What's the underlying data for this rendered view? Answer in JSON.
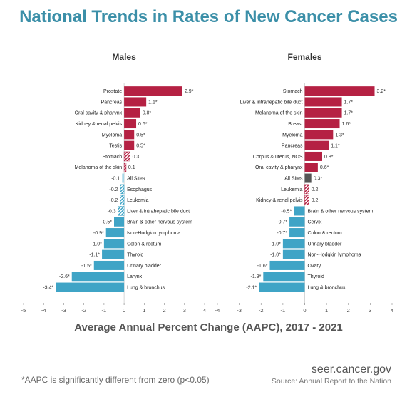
{
  "title": "National Trends in Rates of New Cancer Cases",
  "xlabel": "Average Annual Percent Change (AAPC), 2017 - 2021",
  "footnote": "*AAPC is significantly different from zero (p<0.05)",
  "site": "seer.cancer.gov",
  "source": "Source: Annual Report to the Nation",
  "colors": {
    "positive": "#b52143",
    "negative": "#3fa4c6",
    "all_sites_negative": "#a6d7e8",
    "all_sites_positive": "#555555",
    "hatch_positive": "#b52143",
    "hatch_negative": "#3fa4c6"
  },
  "chart_data": [
    {
      "type": "bar",
      "orientation": "horizontal",
      "title": "Males",
      "xlim": [
        -5,
        4
      ],
      "xticks": [
        "-5",
        "-4",
        "-3",
        "-2",
        "-1",
        "0",
        "1",
        "2",
        "3",
        "4"
      ],
      "bars": [
        {
          "category": "Prostate",
          "value": 2.9,
          "label": "2.9*",
          "significant": true
        },
        {
          "category": "Pancreas",
          "value": 1.1,
          "label": "1.1*",
          "significant": true
        },
        {
          "category": "Oral cavity & pharynx",
          "value": 0.8,
          "label": "0.8*",
          "significant": true
        },
        {
          "category": "Kidney & renal pelvis",
          "value": 0.6,
          "label": "0.6*",
          "significant": true
        },
        {
          "category": "Myeloma",
          "value": 0.5,
          "label": "0.5*",
          "significant": true
        },
        {
          "category": "Testis",
          "value": 0.5,
          "label": "0.5*",
          "significant": true
        },
        {
          "category": "Stomach",
          "value": 0.3,
          "label": "0.3",
          "significant": false
        },
        {
          "category": "Melanoma of the skin",
          "value": 0.1,
          "label": "0.1",
          "significant": false
        },
        {
          "category": "All Sites",
          "value": -0.1,
          "label": "-0.1",
          "significant": false,
          "all_sites": true
        },
        {
          "category": "Esophagus",
          "value": -0.2,
          "label": "-0.2",
          "significant": false
        },
        {
          "category": "Leukemia",
          "value": -0.2,
          "label": "-0.2",
          "significant": false
        },
        {
          "category": "Liver & intrahepatic bile duct",
          "value": -0.3,
          "label": "-0.3",
          "significant": false
        },
        {
          "category": "Brain & other nervous system",
          "value": -0.5,
          "label": "-0.5*",
          "significant": true
        },
        {
          "category": "Non-Hodgkin lymphoma",
          "value": -0.9,
          "label": "-0.9*",
          "significant": true
        },
        {
          "category": "Colon & rectum",
          "value": -1.0,
          "label": "-1.0*",
          "significant": true
        },
        {
          "category": "Thyroid",
          "value": -1.1,
          "label": "-1.1*",
          "significant": true
        },
        {
          "category": "Urinary bladder",
          "value": -1.5,
          "label": "-1.5*",
          "significant": true
        },
        {
          "category": "Larynx",
          "value": -2.6,
          "label": "-2.6*",
          "significant": true
        },
        {
          "category": "Lung & bronchus",
          "value": -3.4,
          "label": "-3.4*",
          "significant": true
        }
      ]
    },
    {
      "type": "bar",
      "orientation": "horizontal",
      "title": "Females",
      "xlim": [
        -4,
        4
      ],
      "xticks": [
        "-4",
        "-3",
        "-2",
        "-1",
        "0",
        "1",
        "2",
        "3",
        "4"
      ],
      "bars": [
        {
          "category": "Stomach",
          "value": 3.2,
          "label": "3.2*",
          "significant": true
        },
        {
          "category": "Liver & intrahepatic bile duct",
          "value": 1.7,
          "label": "1.7*",
          "significant": true
        },
        {
          "category": "Melanoma of the skin",
          "value": 1.7,
          "label": "1.7*",
          "significant": true
        },
        {
          "category": "Breast",
          "value": 1.6,
          "label": "1.6*",
          "significant": true
        },
        {
          "category": "Myeloma",
          "value": 1.3,
          "label": "1.3*",
          "significant": true
        },
        {
          "category": "Pancreas",
          "value": 1.1,
          "label": "1.1*",
          "significant": true
        },
        {
          "category": "Corpus & uterus, NOS",
          "value": 0.8,
          "label": "0.8*",
          "significant": true
        },
        {
          "category": "Oral cavity & pharynx",
          "value": 0.6,
          "label": "0.6*",
          "significant": true
        },
        {
          "category": "All Sites",
          "value": 0.3,
          "label": "0.3*",
          "significant": true,
          "all_sites": true
        },
        {
          "category": "Leukemia",
          "value": 0.2,
          "label": "0.2",
          "significant": false
        },
        {
          "category": "Kidney & renal pelvis",
          "value": 0.2,
          "label": "0.2",
          "significant": false
        },
        {
          "category": "Brain & other nervous system",
          "value": -0.5,
          "label": "-0.5*",
          "significant": true
        },
        {
          "category": "Cervix",
          "value": -0.7,
          "label": "-0.7*",
          "significant": true
        },
        {
          "category": "Colon & rectum",
          "value": -0.7,
          "label": "-0.7*",
          "significant": true
        },
        {
          "category": "Urinary bladder",
          "value": -1.0,
          "label": "-1.0*",
          "significant": true
        },
        {
          "category": "Non-Hodgkin lymphoma",
          "value": -1.0,
          "label": "-1.0*",
          "significant": true
        },
        {
          "category": "Ovary",
          "value": -1.6,
          "label": "-1.6*",
          "significant": true
        },
        {
          "category": "Thyroid",
          "value": -1.9,
          "label": "-1.9*",
          "significant": true
        },
        {
          "category": "Lung & bronchus",
          "value": -2.1,
          "label": "-2.1*",
          "significant": true
        }
      ]
    }
  ]
}
